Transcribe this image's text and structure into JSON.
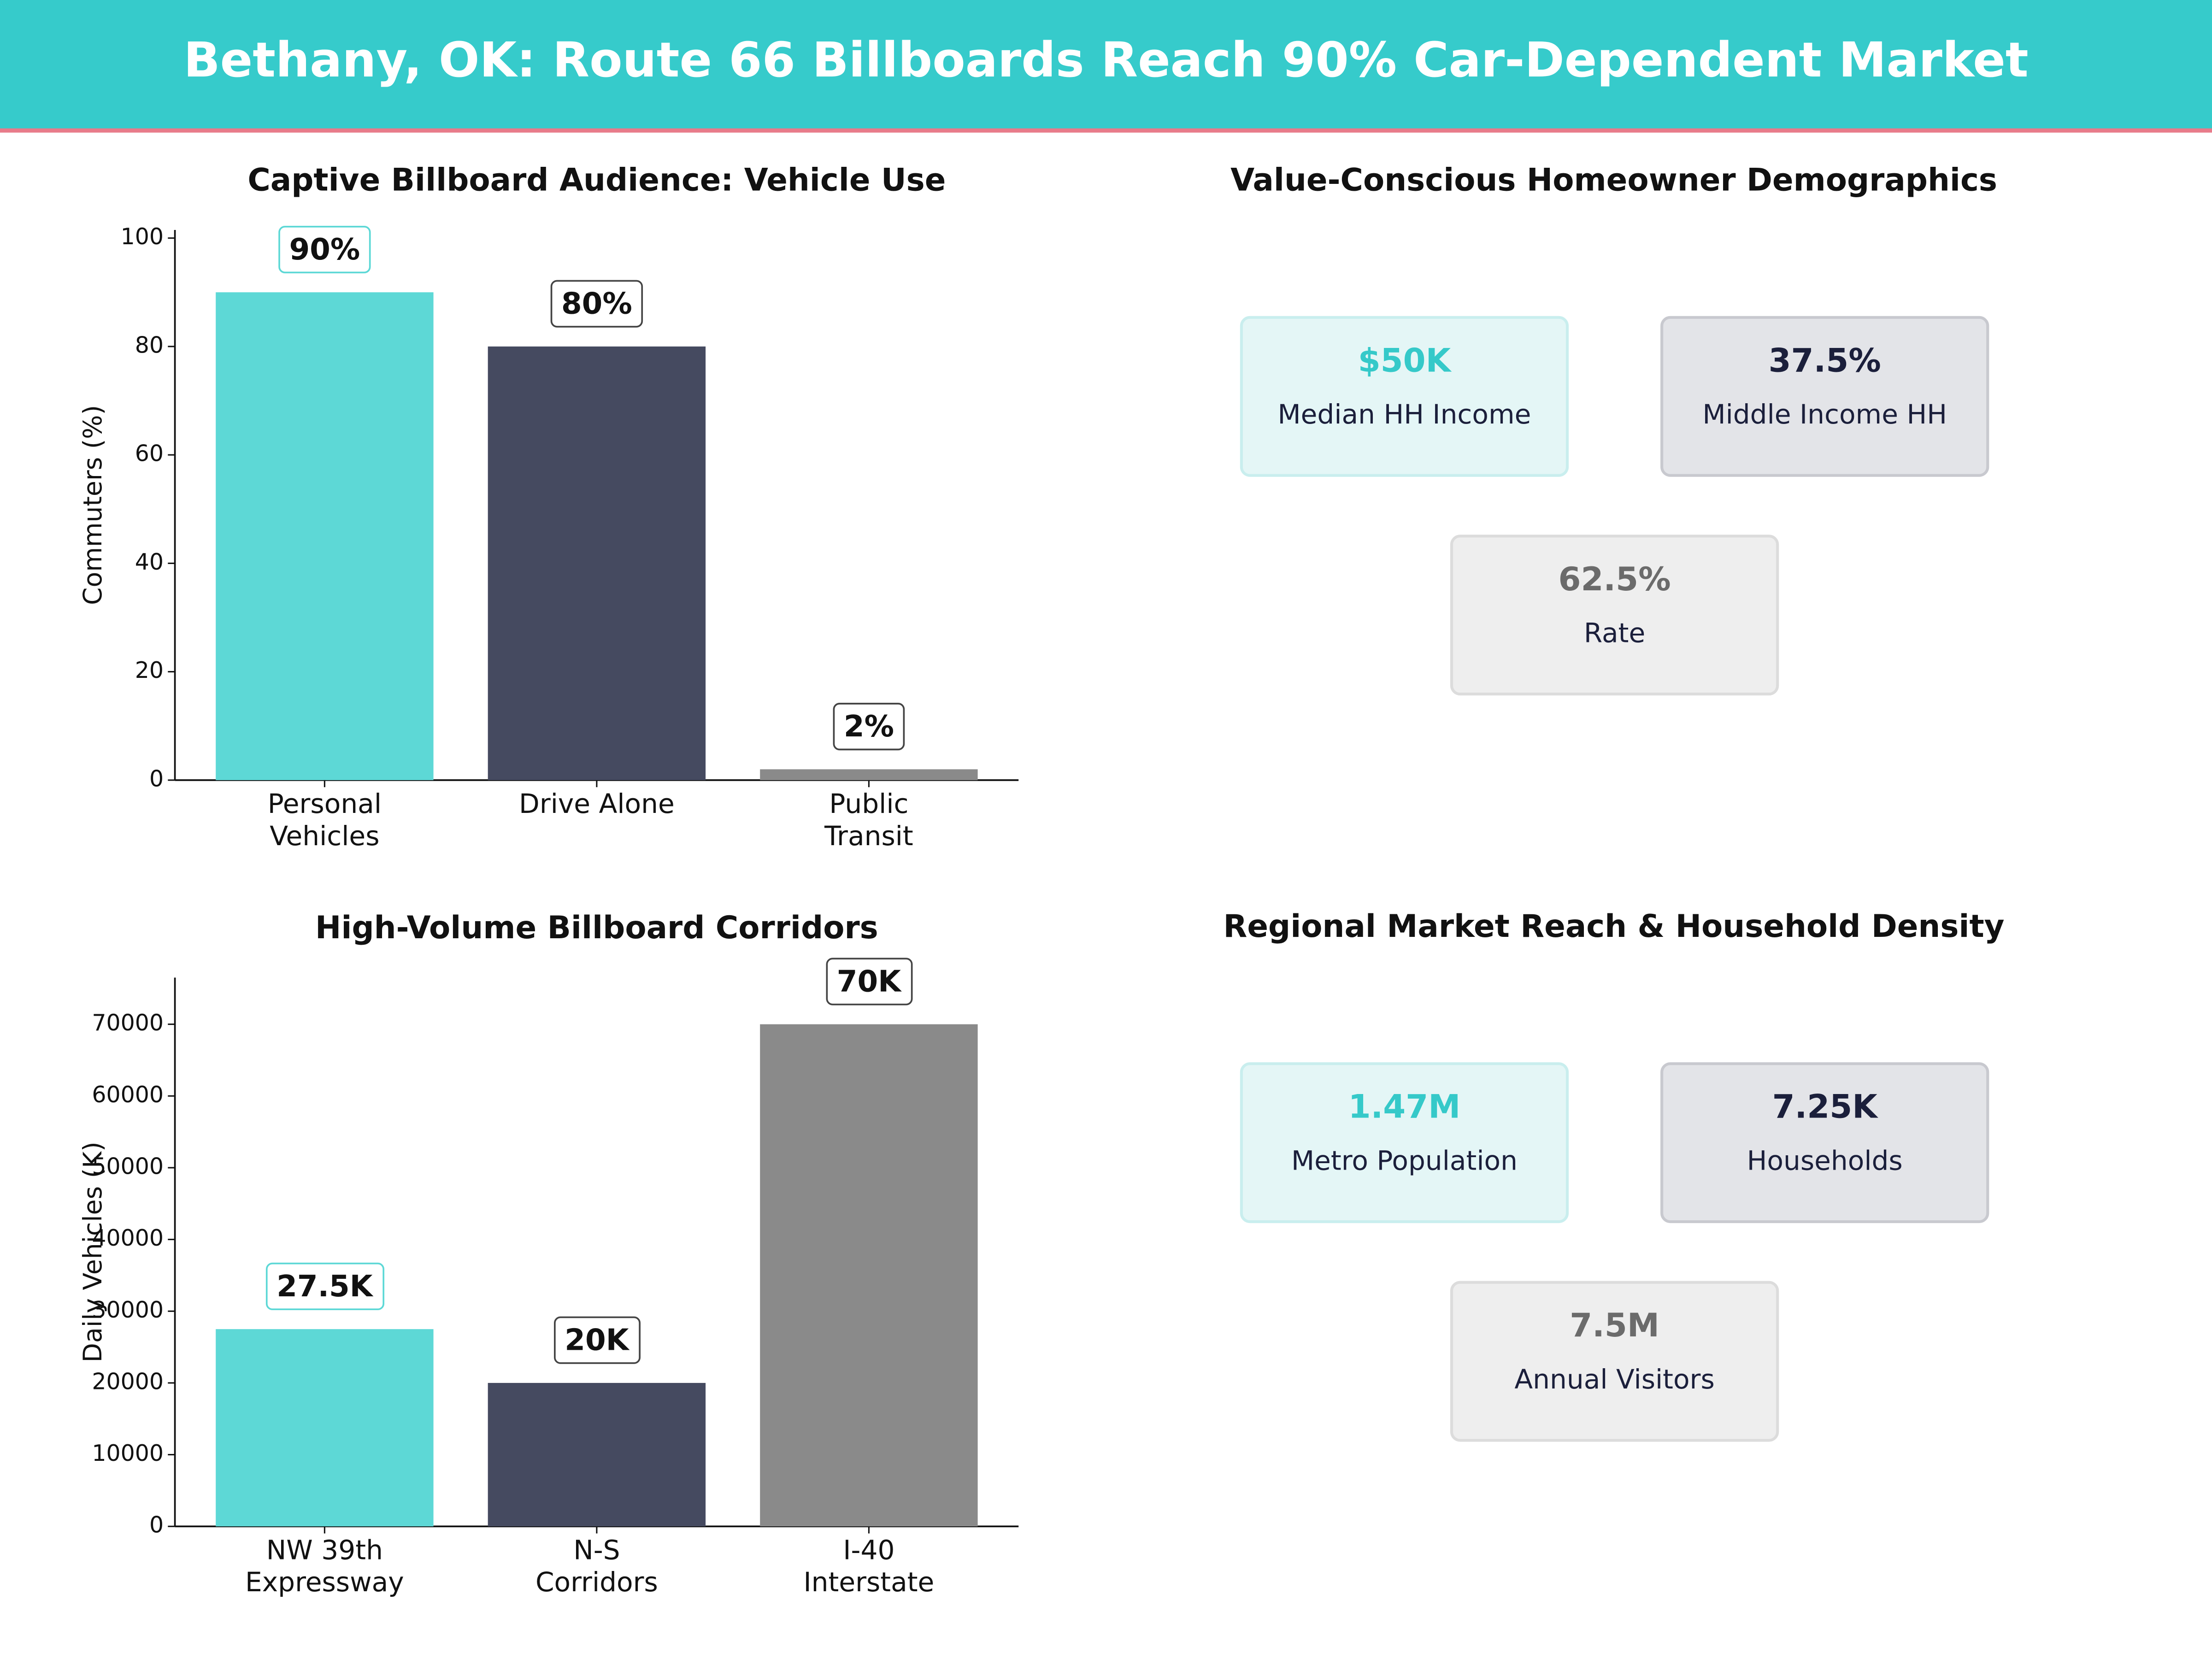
{
  "title": "Bethany, OK: Route 66 Billboards Reach 90% Car-Dependent Market",
  "chart_data": [
    {
      "type": "bar",
      "title": "Captive Billboard Audience: Vehicle Use",
      "y_label": "Commuters (%)",
      "categories": [
        "Personal\nVehicles",
        "Drive Alone",
        "Public\nTransit"
      ],
      "values": [
        90,
        80,
        2
      ],
      "value_labels": [
        "90%",
        "80%",
        "2%"
      ],
      "colors": [
        "#5dd8d6",
        "#454a60",
        "#8a8a8a"
      ],
      "ylim": [
        0,
        101.5
      ],
      "yticks": [
        0,
        20,
        40,
        60,
        80,
        100
      ],
      "grid": false
    },
    {
      "type": "bar",
      "title": "High-Volume Billboard Corridors",
      "y_label": "Daily Vehicles (K)",
      "categories": [
        "NW 39th\nExpressway",
        "N-S\nCorridors",
        "I-40\nInterstate"
      ],
      "values": [
        27500,
        20000,
        70000
      ],
      "value_labels": [
        "27.5K",
        "20K",
        "70K"
      ],
      "colors": [
        "#5dd8d6",
        "#454a60",
        "#8a8a8a"
      ],
      "ylim": [
        0,
        76500
      ],
      "yticks": [
        0,
        10000,
        20000,
        30000,
        40000,
        50000,
        60000,
        70000
      ],
      "grid": false
    }
  ],
  "panels": [
    {
      "title": "Value-Conscious Homeowner Demographics",
      "cards": [
        {
          "value": "$50K",
          "label": "Median HH Income"
        },
        {
          "value": "37.5%",
          "label": "Middle Income HH"
        },
        {
          "value": "62.5%",
          "label": "Rate"
        }
      ]
    },
    {
      "title": "Regional Market Reach & Household Density",
      "cards": [
        {
          "value": "1.47M",
          "label": "Metro Population"
        },
        {
          "value": "7.25K",
          "label": "Households"
        },
        {
          "value": "7.5M",
          "label": "Annual Visitors"
        }
      ]
    }
  ]
}
